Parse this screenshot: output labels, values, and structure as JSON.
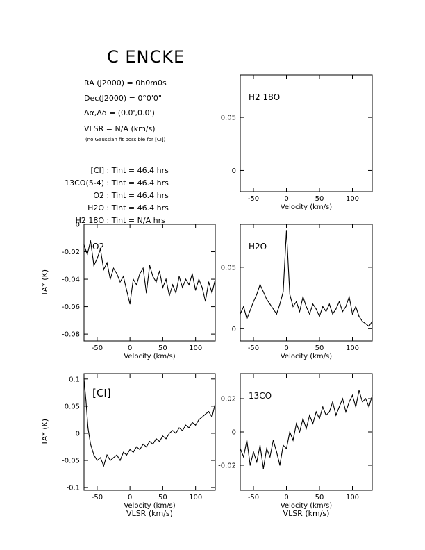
{
  "header": {
    "title": "C ENCKE",
    "ra": {
      "label": "RA (J2000)",
      "value": "0h0m0s"
    },
    "dec": {
      "label": "Dec(J2000)",
      "value": "0°0'0\""
    },
    "offset": {
      "label": "Δα,Δδ",
      "value": "(0.0',0.0')"
    },
    "vlsr": {
      "label": "VLSR",
      "value": "N/A",
      "unit": "(km/s)"
    },
    "note": "(no Gaussian fit possible for [CI])",
    "integrations": [
      {
        "line": "[CI]",
        "value": "46.4 hrs"
      },
      {
        "line": "13CO(5-4)",
        "value": "46.4 hrs"
      },
      {
        "line": "O2",
        "value": "46.4 hrs"
      },
      {
        "line": "H2O",
        "value": "46.4 hrs"
      },
      {
        "line": "H2 18O",
        "value": "N/A hrs"
      }
    ],
    "tint_label": "Tint"
  },
  "chart_data": [
    {
      "type": "line",
      "panel": "top-right",
      "label": "H2 18O",
      "xlabel": "Velocity (km/s)",
      "ylabel": "",
      "xlim": [
        -70,
        130
      ],
      "ylim": [
        -0.02,
        0.09
      ],
      "xticks": [
        -50,
        0,
        50,
        100
      ],
      "yticks": [
        0,
        0.05
      ],
      "ytick_labels": [
        "0",
        "0.05"
      ],
      "series": []
    },
    {
      "type": "line",
      "panel": "middle-left",
      "label": "O2",
      "xlabel": "Velocity (km/s)",
      "ylabel": "TA* (K)",
      "xlim": [
        -70,
        130
      ],
      "ylim": [
        -0.085,
        0
      ],
      "xticks": [
        -50,
        0,
        50,
        100
      ],
      "yticks": [
        0,
        -0.02,
        -0.04,
        -0.06,
        -0.08
      ],
      "ytick_labels": [
        "0",
        "-0.02",
        "-0.04",
        "-0.06",
        "-0.08"
      ],
      "series": [
        {
          "x": [
            -70,
            -65,
            -60,
            -55,
            -50,
            -45,
            -40,
            -35,
            -30,
            -25,
            -20,
            -15,
            -10,
            -5,
            0,
            5,
            10,
            15,
            20,
            25,
            30,
            35,
            40,
            45,
            50,
            55,
            60,
            65,
            70,
            75,
            80,
            85,
            90,
            95,
            100,
            105,
            110,
            115,
            120,
            125,
            130
          ],
          "y": [
            -0.015,
            -0.022,
            -0.012,
            -0.03,
            -0.025,
            -0.018,
            -0.033,
            -0.028,
            -0.04,
            -0.032,
            -0.036,
            -0.042,
            -0.038,
            -0.048,
            -0.058,
            -0.04,
            -0.044,
            -0.036,
            -0.032,
            -0.05,
            -0.03,
            -0.038,
            -0.042,
            -0.034,
            -0.046,
            -0.04,
            -0.052,
            -0.044,
            -0.05,
            -0.038,
            -0.046,
            -0.04,
            -0.044,
            -0.036,
            -0.048,
            -0.04,
            -0.046,
            -0.056,
            -0.042,
            -0.05,
            -0.04
          ]
        }
      ]
    },
    {
      "type": "line",
      "panel": "middle-right",
      "label": "H2O",
      "xlabel": "Velocity (km/s)",
      "ylabel": "",
      "xlim": [
        -70,
        130
      ],
      "ylim": [
        -0.01,
        0.085
      ],
      "xticks": [
        -50,
        0,
        50,
        100
      ],
      "yticks": [
        0,
        0.05
      ],
      "ytick_labels": [
        "0",
        "0.05"
      ],
      "series": [
        {
          "x": [
            -70,
            -65,
            -60,
            -55,
            -50,
            -45,
            -40,
            -35,
            -30,
            -25,
            -20,
            -15,
            -10,
            -5,
            0,
            5,
            10,
            15,
            20,
            25,
            30,
            35,
            40,
            45,
            50,
            55,
            60,
            65,
            70,
            75,
            80,
            85,
            90,
            95,
            100,
            105,
            110,
            115,
            120,
            125,
            130
          ],
          "y": [
            0.012,
            0.018,
            0.008,
            0.015,
            0.022,
            0.028,
            0.036,
            0.03,
            0.024,
            0.02,
            0.016,
            0.012,
            0.02,
            0.03,
            0.08,
            0.028,
            0.018,
            0.022,
            0.014,
            0.026,
            0.018,
            0.012,
            0.02,
            0.016,
            0.01,
            0.018,
            0.014,
            0.02,
            0.012,
            0.016,
            0.022,
            0.014,
            0.018,
            0.026,
            0.012,
            0.018,
            0.01,
            0.006,
            0.004,
            0.002,
            0.006
          ]
        }
      ]
    },
    {
      "type": "line",
      "panel": "bottom-left",
      "label": "[CI]",
      "xlabel": "Velocity (km/s)",
      "xlabel2": "VLSR (km/s)",
      "ylabel": "TA* (K)",
      "xlim": [
        -70,
        130
      ],
      "ylim": [
        -0.105,
        0.11
      ],
      "xticks": [
        -50,
        0,
        50,
        100
      ],
      "yticks": [
        0.1,
        0.05,
        0,
        -0.05,
        -0.1
      ],
      "ytick_labels": [
        "0.1",
        "0.05",
        "0",
        "-0.05",
        "-0.1"
      ],
      "series": [
        {
          "x": [
            -70,
            -67,
            -64,
            -60,
            -55,
            -50,
            -45,
            -40,
            -35,
            -30,
            -25,
            -20,
            -15,
            -10,
            -5,
            0,
            5,
            10,
            15,
            20,
            25,
            30,
            35,
            40,
            45,
            50,
            55,
            60,
            65,
            70,
            75,
            80,
            85,
            90,
            95,
            100,
            105,
            110,
            115,
            120,
            125,
            130
          ],
          "y": [
            0.1,
            0.06,
            0.01,
            -0.02,
            -0.04,
            -0.05,
            -0.045,
            -0.06,
            -0.04,
            -0.05,
            -0.045,
            -0.04,
            -0.05,
            -0.035,
            -0.04,
            -0.03,
            -0.035,
            -0.025,
            -0.03,
            -0.02,
            -0.025,
            -0.015,
            -0.02,
            -0.01,
            -0.015,
            -0.005,
            -0.01,
            0.0,
            0.005,
            0.0,
            0.01,
            0.005,
            0.015,
            0.01,
            0.02,
            0.015,
            0.025,
            0.03,
            0.035,
            0.04,
            0.03,
            0.055
          ]
        }
      ]
    },
    {
      "type": "line",
      "panel": "bottom-right",
      "label": "13CO",
      "xlabel": "Velocity (km/s)",
      "xlabel2": "VLSR (km/s)",
      "ylabel": "",
      "xlim": [
        -70,
        130
      ],
      "ylim": [
        -0.035,
        0.035
      ],
      "xticks": [
        -50,
        0,
        50,
        100
      ],
      "yticks": [
        0.02,
        0,
        -0.02
      ],
      "ytick_labels": [
        "0.02",
        "0",
        "-0.02"
      ],
      "series": [
        {
          "x": [
            -70,
            -65,
            -60,
            -55,
            -50,
            -45,
            -40,
            -35,
            -30,
            -25,
            -20,
            -15,
            -10,
            -5,
            0,
            5,
            10,
            15,
            20,
            25,
            30,
            35,
            40,
            45,
            50,
            55,
            60,
            65,
            70,
            75,
            80,
            85,
            90,
            95,
            100,
            105,
            110,
            115,
            120,
            125,
            130
          ],
          "y": [
            -0.01,
            -0.015,
            -0.005,
            -0.02,
            -0.012,
            -0.018,
            -0.008,
            -0.022,
            -0.01,
            -0.015,
            -0.005,
            -0.012,
            -0.02,
            -0.008,
            -0.01,
            0.0,
            -0.005,
            0.005,
            0.0,
            0.008,
            0.002,
            0.01,
            0.005,
            0.012,
            0.008,
            0.015,
            0.01,
            0.012,
            0.018,
            0.01,
            0.015,
            0.02,
            0.012,
            0.018,
            0.022,
            0.015,
            0.025,
            0.018,
            0.02,
            0.015,
            0.022
          ]
        }
      ]
    }
  ]
}
